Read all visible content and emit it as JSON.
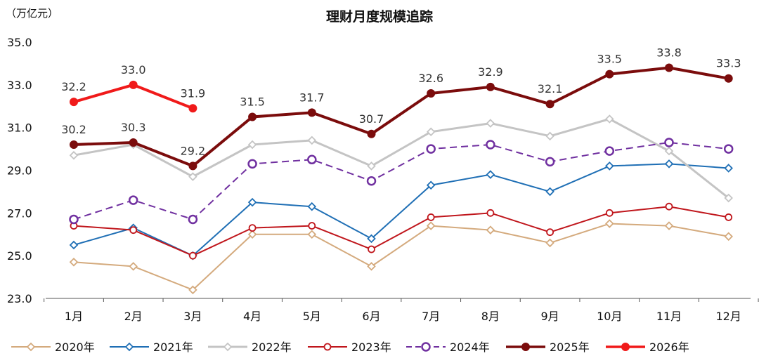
{
  "chart_data": {
    "type": "line",
    "title": "理财月度规模追踪",
    "unit_label": "（万亿元）",
    "categories": [
      "1月",
      "2月",
      "3月",
      "4月",
      "5月",
      "6月",
      "7月",
      "8月",
      "9月",
      "10月",
      "11月",
      "12月"
    ],
    "ylim": [
      23.0,
      35.0
    ],
    "yticks": [
      "23.0",
      "25.0",
      "27.0",
      "29.0",
      "31.0",
      "33.0",
      "35.0"
    ],
    "legend_position": "bottom",
    "series": [
      {
        "name": "2020年",
        "color": "#D4AA7D",
        "marker": "diamond",
        "dashed": false,
        "width": 2,
        "values": [
          24.7,
          24.5,
          23.4,
          26.0,
          26.0,
          24.5,
          26.4,
          26.2,
          25.6,
          26.5,
          26.4,
          25.9
        ]
      },
      {
        "name": "2021年",
        "color": "#1F6FB5",
        "marker": "diamond",
        "dashed": false,
        "width": 2,
        "values": [
          25.5,
          26.3,
          25.0,
          27.5,
          27.3,
          25.8,
          28.3,
          28.8,
          28.0,
          29.2,
          29.3,
          29.1
        ]
      },
      {
        "name": "2022年",
        "color": "#C4C4C4",
        "marker": "diamond",
        "dashed": false,
        "width": 3,
        "values": [
          29.7,
          30.2,
          28.7,
          30.2,
          30.4,
          29.2,
          30.8,
          31.2,
          30.6,
          31.4,
          29.9,
          27.7
        ]
      },
      {
        "name": "2023年",
        "color": "#C0161C",
        "marker": "circle-open",
        "dashed": false,
        "width": 2,
        "values": [
          26.4,
          26.2,
          25.0,
          26.3,
          26.4,
          25.3,
          26.8,
          27.0,
          26.1,
          27.0,
          27.3,
          26.8
        ]
      },
      {
        "name": "2024年",
        "color": "#7030A0",
        "marker": "circle-open",
        "dashed": true,
        "width": 2,
        "values": [
          26.7,
          27.6,
          26.7,
          29.3,
          29.5,
          28.5,
          30.0,
          30.2,
          29.4,
          29.9,
          30.3,
          30.0
        ]
      },
      {
        "name": "2025年",
        "color": "#7B0C0C",
        "marker": "circle",
        "dashed": false,
        "width": 4,
        "values": [
          30.2,
          30.3,
          29.2,
          31.5,
          31.7,
          30.7,
          32.6,
          32.9,
          32.1,
          33.5,
          33.8,
          33.3
        ],
        "labels": [
          "30.2",
          "30.3",
          "29.2",
          "31.5",
          "31.7",
          "30.7",
          "32.6",
          "32.9",
          "32.1",
          "33.5",
          "33.8",
          "33.3"
        ]
      },
      {
        "name": "2026年",
        "color": "#F01A1A",
        "marker": "circle",
        "dashed": false,
        "width": 4,
        "values": [
          32.2,
          33.0,
          31.9,
          null,
          null,
          null,
          null,
          null,
          null,
          null,
          null,
          null
        ],
        "labels": [
          "32.2",
          "33.0",
          "31.9"
        ]
      }
    ]
  }
}
